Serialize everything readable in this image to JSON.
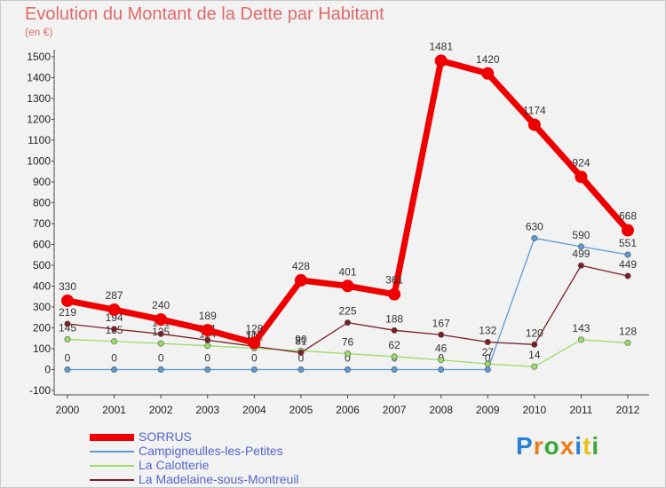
{
  "chart_data": {
    "type": "line",
    "title": "Evolution du Montant de la Dette par Habitant",
    "subtitle": "(en €)",
    "x": [
      2000,
      2001,
      2002,
      2003,
      2004,
      2005,
      2006,
      2007,
      2008,
      2009,
      2010,
      2011,
      2012
    ],
    "ylim": [
      -100,
      1500
    ],
    "yticks": [
      -100,
      0,
      100,
      200,
      300,
      400,
      500,
      600,
      700,
      800,
      900,
      1000,
      1100,
      1200,
      1300,
      1400,
      1500
    ],
    "grid": false,
    "legend_position": "bottom-left",
    "series": [
      {
        "name": "SORRUS",
        "color": "#ee0000",
        "values": [
          330,
          287,
          240,
          189,
          128,
          428,
          401,
          361,
          1481,
          1420,
          1174,
          924,
          668
        ],
        "labels": [
          "330",
          "287",
          "240",
          "189",
          "128",
          "428",
          "401",
          "361",
          "1481",
          "1420",
          "1174",
          "924",
          "668"
        ]
      },
      {
        "name": "Campigneulles-les-Petites",
        "color": "#5b9bd5",
        "values": [
          0,
          0,
          0,
          0,
          0,
          0,
          0,
          0,
          0,
          0,
          630,
          590,
          551
        ],
        "labels": [
          "0",
          "0",
          "0",
          "0",
          "0",
          "0",
          "0",
          "0",
          "0",
          "0",
          "630",
          "590",
          "551"
        ]
      },
      {
        "name": "La Calotterie",
        "color": "#99dd66",
        "values": [
          145,
          135,
          125,
          114,
          102,
          90,
          76,
          62,
          46,
          27,
          14,
          143,
          128
        ],
        "labels": [
          "145",
          "135",
          "125",
          "114",
          "102",
          "90",
          "76",
          "62",
          "46",
          "27",
          "14",
          "143",
          "128"
        ]
      },
      {
        "name": "La Madelaine-sous-Montreuil",
        "color": "#7a1f24",
        "values": [
          219,
          194,
          171,
          141,
          111,
          81,
          225,
          188,
          167,
          132,
          120,
          499,
          449
        ],
        "labels": [
          "219",
          "194",
          "171",
          "141",
          "111",
          "81",
          "225",
          "188",
          "167",
          "132",
          "120",
          "499",
          "449"
        ]
      }
    ]
  },
  "logo": {
    "letters": [
      "P",
      "r",
      "o",
      "x",
      "i",
      "t",
      "i"
    ],
    "colors": [
      "#2a7fd4",
      "#e87e1c",
      "#3aa83a",
      "#e87e1c",
      "#2a7fd4",
      "#e8c21c",
      "#3aa83a"
    ]
  }
}
